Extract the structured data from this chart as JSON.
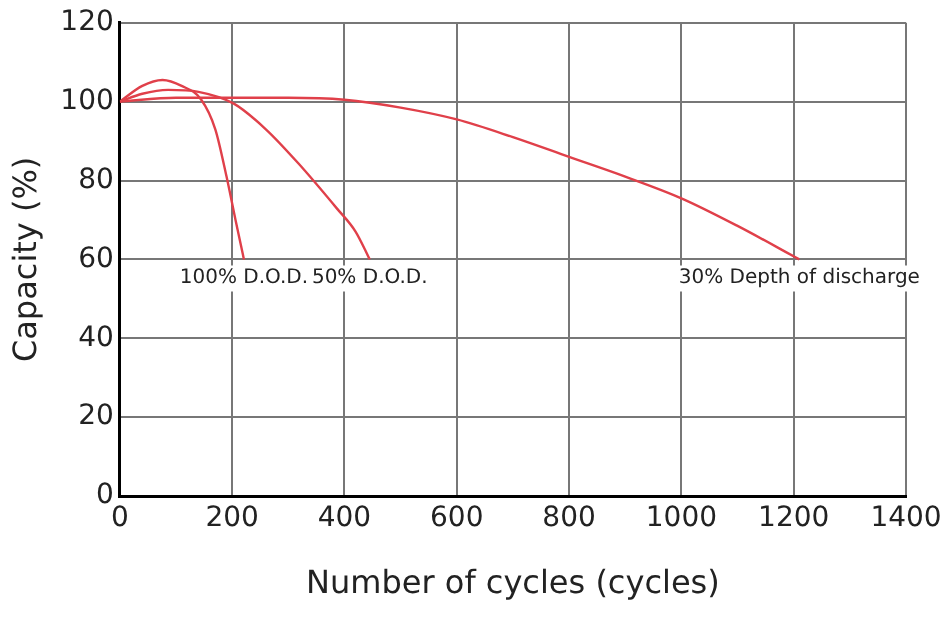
{
  "chart_data": {
    "type": "line",
    "xlabel": "Number of cycles (cycles)",
    "ylabel": "Capacity (%)",
    "xlim": [
      0,
      1400
    ],
    "ylim": [
      0,
      120
    ],
    "xticks": [
      0,
      200,
      400,
      600,
      800,
      1000,
      1200,
      1400
    ],
    "yticks": [
      0,
      20,
      40,
      60,
      80,
      100,
      120
    ],
    "grid": true,
    "legend": false,
    "marker": "none",
    "line_style": "solid",
    "series": [
      {
        "color": "#e0404a",
        "x": [
          0,
          40,
          76,
          110,
          145,
          170,
          190,
          206,
          221
        ],
        "values": [
          100,
          104,
          105.5,
          104,
          100.5,
          93,
          81,
          70,
          60
        ]
      },
      {
        "color": "#e0404a",
        "x": [
          0,
          40,
          86,
          140,
          203,
          260,
          317,
          386,
          420,
          445
        ],
        "values": [
          100,
          102,
          103,
          102.5,
          99.5,
          93,
          84.5,
          73,
          67,
          60
        ]
      },
      {
        "color": "#e0404a",
        "x": [
          0,
          100,
          200,
          300,
          400,
          500,
          600,
          700,
          800,
          900,
          1000,
          1100,
          1210
        ],
        "values": [
          100,
          101,
          101,
          101,
          100.5,
          98.5,
          95.5,
          91,
          86,
          81,
          75.5,
          68.5,
          60
        ]
      }
    ],
    "annotations": [
      {
        "text": "100% D.O.D.",
        "x": 221,
        "y": 60
      },
      {
        "text": "50% D.O.D.",
        "x": 445,
        "y": 60
      },
      {
        "text": "30% Depth of discharge",
        "x": 1210,
        "y": 60
      }
    ]
  }
}
